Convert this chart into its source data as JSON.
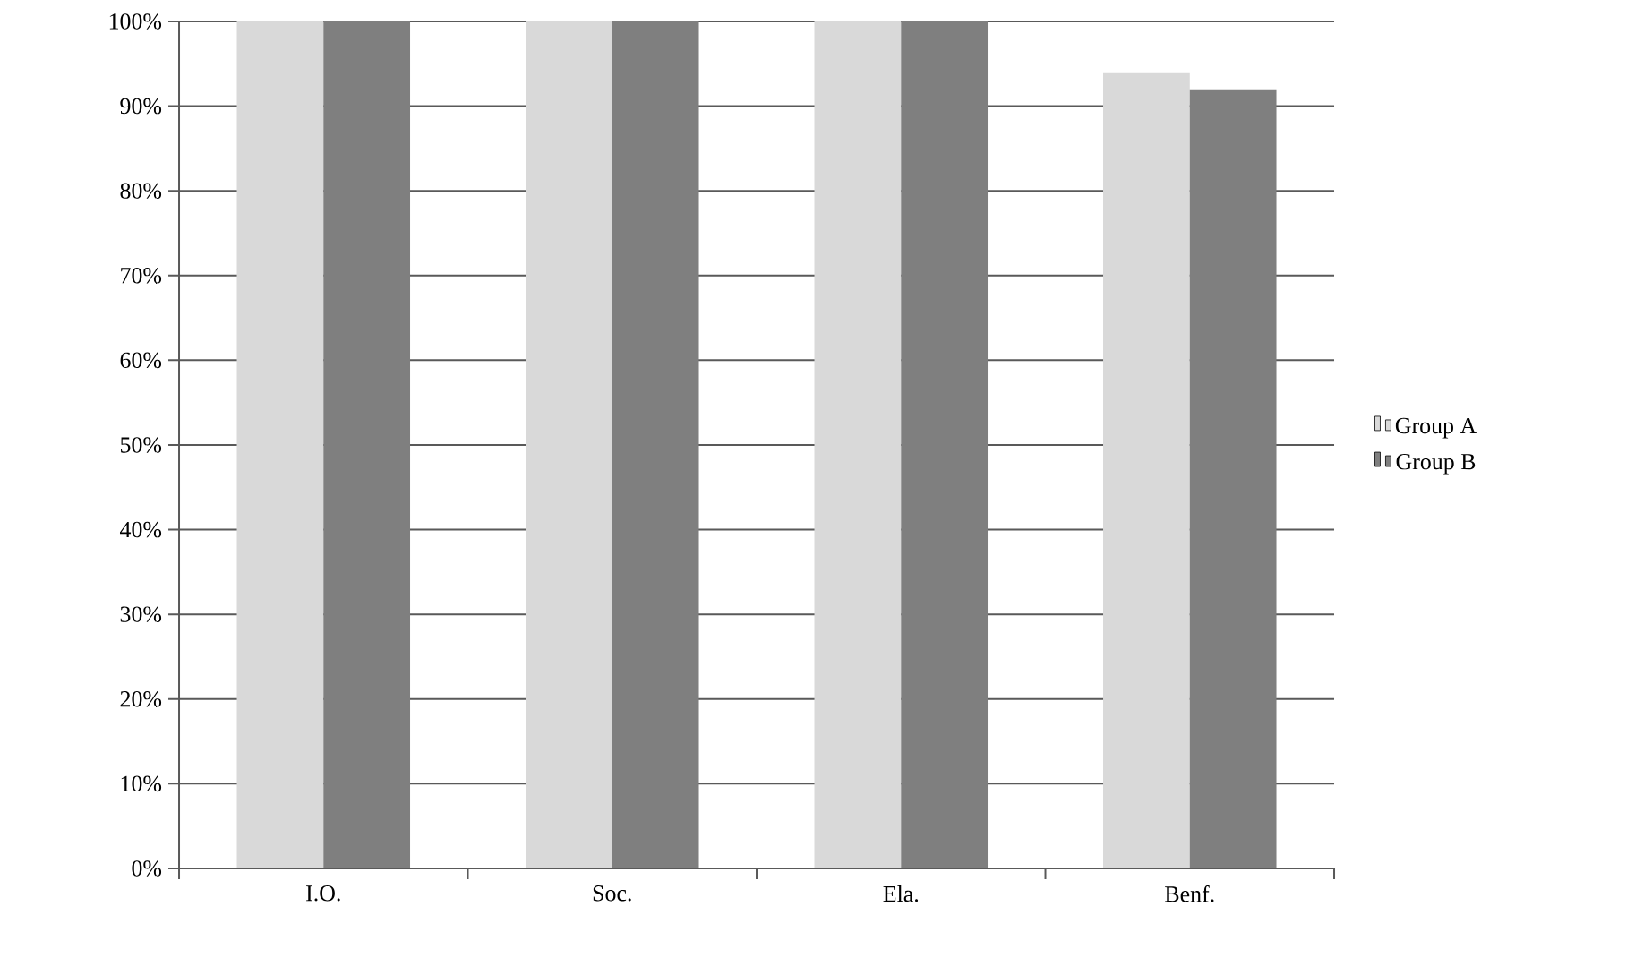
{
  "chart_data": {
    "type": "bar",
    "categories": [
      "I.O.",
      "Soc.",
      "Ela.",
      "Benf."
    ],
    "series": [
      {
        "name": "Group A",
        "color": "#d9d9d9",
        "values": [
          100,
          100,
          100,
          94
        ]
      },
      {
        "name": "Group B",
        "color": "#7f7f7f",
        "values": [
          100,
          100,
          100,
          92
        ]
      }
    ],
    "ylim": [
      0,
      100
    ],
    "yticks": [
      {
        "value": 0,
        "label": "0%"
      },
      {
        "value": 10,
        "label": "10%"
      },
      {
        "value": 20,
        "label": "20%"
      },
      {
        "value": 30,
        "label": "30%"
      },
      {
        "value": 40,
        "label": "40%"
      },
      {
        "value": 50,
        "label": "50%"
      },
      {
        "value": 60,
        "label": "60%"
      },
      {
        "value": 70,
        "label": "70%"
      },
      {
        "value": 80,
        "label": "80%"
      },
      {
        "value": 90,
        "label": "90%"
      },
      {
        "value": 100,
        "label": "100%"
      }
    ],
    "grid": "y",
    "legend": "right"
  }
}
